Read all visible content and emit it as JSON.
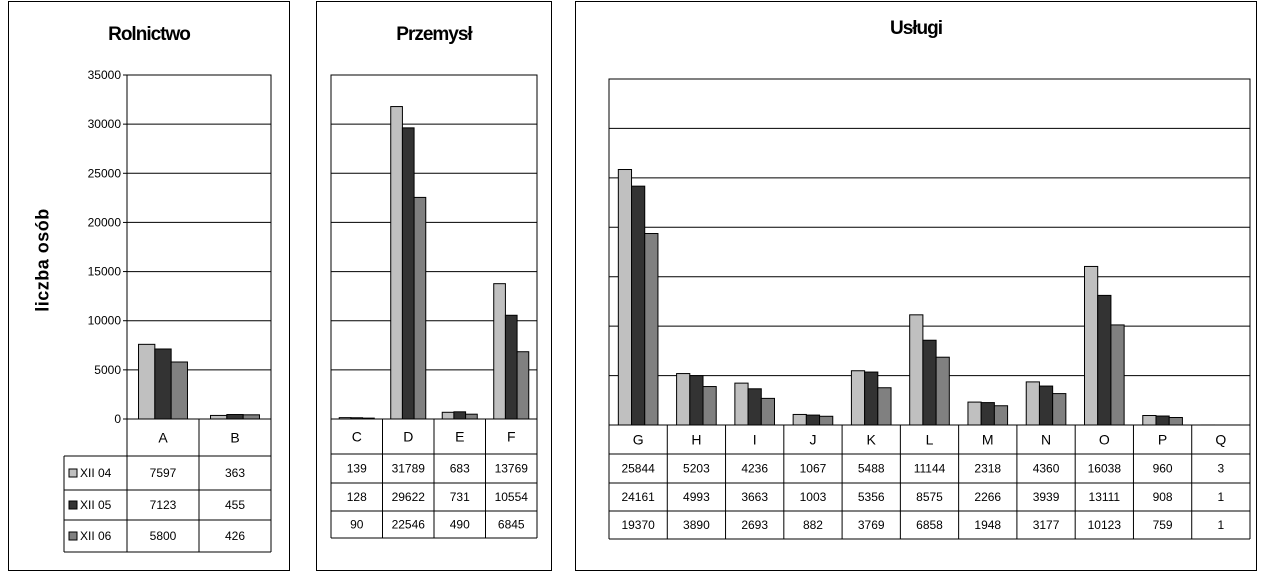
{
  "colors": {
    "series": [
      "#c0c0c0",
      "#333333",
      "#808080"
    ]
  },
  "ylabel": "liczba osób",
  "legend": [
    "XII 04",
    "XII 05",
    "XII 06"
  ],
  "chart_data": [
    {
      "type": "bar",
      "title": "Rolnictwo",
      "ylabel": "liczba osób",
      "categories": [
        "A",
        "B"
      ],
      "series": [
        {
          "name": "XII 04",
          "values": [
            7597,
            363
          ]
        },
        {
          "name": "XII 05",
          "values": [
            7123,
            455
          ]
        },
        {
          "name": "XII 06",
          "values": [
            5800,
            426
          ]
        }
      ],
      "ylim": [
        0,
        35000
      ],
      "yticks": [
        "0",
        "5000",
        "10000",
        "15000",
        "20000",
        "25000",
        "30000",
        "35000"
      ],
      "table": [
        [
          "7597",
          "363"
        ],
        [
          "7123",
          "455"
        ],
        [
          "5800",
          "426"
        ]
      ]
    },
    {
      "type": "bar",
      "title": "Przemysł",
      "categories": [
        "C",
        "D",
        "E",
        "F"
      ],
      "series": [
        {
          "name": "XII 04",
          "values": [
            139,
            31789,
            683,
            13769
          ]
        },
        {
          "name": "XII 05",
          "values": [
            128,
            29622,
            731,
            10554
          ]
        },
        {
          "name": "XII 06",
          "values": [
            90,
            22546,
            490,
            6845
          ]
        }
      ],
      "ylim": [
        0,
        35000
      ],
      "table": [
        [
          "139",
          "31789",
          "683",
          "13769"
        ],
        [
          "128",
          "29622",
          "731",
          "10554"
        ],
        [
          "90",
          "22546",
          "490",
          "6845"
        ]
      ]
    },
    {
      "type": "bar",
      "title": "Usługi",
      "categories": [
        "G",
        "H",
        "I",
        "J",
        "K",
        "L",
        "M",
        "N",
        "O",
        "P",
        "Q"
      ],
      "series": [
        {
          "name": "XII 04",
          "values": [
            25844,
            5203,
            4236,
            1067,
            5488,
            11144,
            2318,
            4360,
            16038,
            960,
            3
          ]
        },
        {
          "name": "XII 05",
          "values": [
            24161,
            4993,
            3663,
            1003,
            5356,
            8575,
            2266,
            3939,
            13111,
            908,
            1
          ]
        },
        {
          "name": "XII 06",
          "values": [
            19370,
            3890,
            2693,
            882,
            3769,
            6858,
            1948,
            3177,
            10123,
            759,
            1
          ]
        }
      ],
      "ylim": [
        0,
        35000
      ],
      "table": [
        [
          "25844",
          "5203",
          "4236",
          "1067",
          "5488",
          "11144",
          "2318",
          "4360",
          "16038",
          "960",
          "3"
        ],
        [
          "24161",
          "4993",
          "3663",
          "1003",
          "5356",
          "8575",
          "2266",
          "3939",
          "13111",
          "908",
          "1"
        ],
        [
          "19370",
          "3890",
          "2693",
          "882",
          "3769",
          "6858",
          "1948",
          "3177",
          "10123",
          "759",
          "1"
        ]
      ]
    }
  ]
}
